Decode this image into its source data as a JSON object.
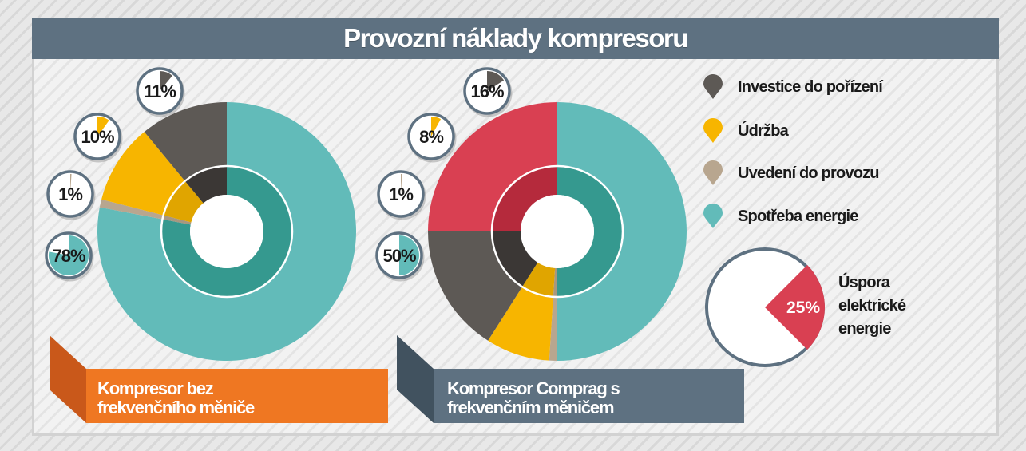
{
  "title": "Provozní náklady kompresoru",
  "colors": {
    "investice": "#5d5955",
    "investice_inner": "#3b3735",
    "udrzba": "#f7b500",
    "udrzba_inner": "#e0a500",
    "uvedeni": "#b8a68f",
    "uvedeni_inner": "#a8977f",
    "spotreba": "#62bbb9",
    "spotreba_inner": "#35998f",
    "uspora": "#d94052",
    "uspora_inner": "#b52a3c",
    "title_bar": "#5e7181",
    "orange": "#ef7722",
    "slate": "#5e7181"
  },
  "legend": [
    {
      "label": "Investice do pořízení",
      "color_key": "investice",
      "icon": "map-pin-icon"
    },
    {
      "label": "Údržba",
      "color_key": "udrzba",
      "icon": "map-pin-icon"
    },
    {
      "label": "Uvedení do provozu",
      "color_key": "uvedeni",
      "icon": "map-pin-icon"
    },
    {
      "label": "Spotřeba energie",
      "color_key": "spotreba",
      "icon": "map-pin-icon"
    }
  ],
  "chart_data": [
    {
      "type": "pie",
      "caption_lines": [
        "Kompresor bez",
        "frekvenčního měniče"
      ],
      "series": [
        {
          "name": "Spotřeba energie",
          "value": 78,
          "label": "78%",
          "color_key": "spotreba"
        },
        {
          "name": "Uvedení do provozu",
          "value": 1,
          "label": "1%",
          "color_key": "uvedeni"
        },
        {
          "name": "Údržba",
          "value": 10,
          "label": "10%",
          "color_key": "udrzba"
        },
        {
          "name": "Investice do pořízení",
          "value": 11,
          "label": "11%",
          "color_key": "investice"
        }
      ]
    },
    {
      "type": "pie",
      "caption_lines": [
        "Kompresor Comprag s",
        "frekvenčním měničem"
      ],
      "series": [
        {
          "name": "Spotřeba energie",
          "value": 50,
          "label": "50%",
          "color_key": "spotreba"
        },
        {
          "name": "Uvedení do provozu",
          "value": 1,
          "label": "1%",
          "color_key": "uvedeni"
        },
        {
          "name": "Údržba",
          "value": 8,
          "label": "8%",
          "color_key": "udrzba"
        },
        {
          "name": "Investice do pořízení",
          "value": 16,
          "label": "16%",
          "color_key": "investice"
        },
        {
          "name": "Úspora elektrické energie",
          "value": 25,
          "label": "",
          "color_key": "uspora"
        }
      ]
    },
    {
      "type": "pie",
      "series": [
        {
          "name": "Úspora elektrické energie",
          "value": 25,
          "label": "25%",
          "color_key": "uspora"
        }
      ]
    }
  ],
  "savings": {
    "label_lines": [
      "Úspora",
      "elektrické",
      "energie"
    ]
  }
}
